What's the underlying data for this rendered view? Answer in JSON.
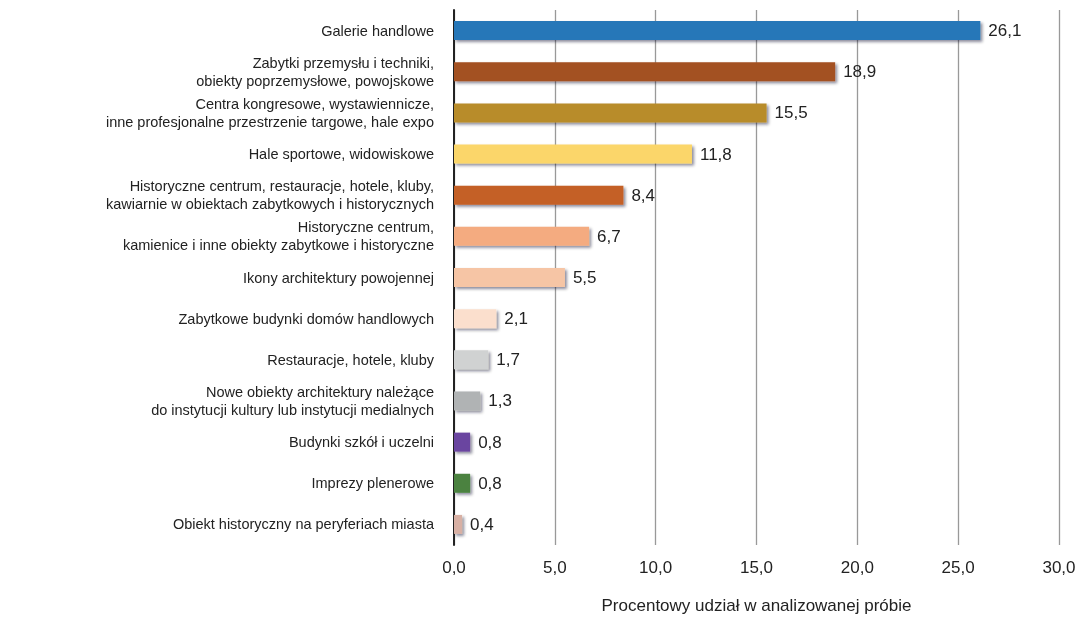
{
  "chart_data": {
    "type": "bar",
    "orientation": "horizontal",
    "xlabel": "Procentowy udział w analizowanej próbie",
    "categories": [
      "Galerie handlowe",
      "Zabytki przemysłu i techniki,\nobiekty poprzemysłowe, powojskowe",
      "Centra kongresowe, wystawiennicze,\ninne profesjonalne przestrzenie targowe, hale expo",
      "Hale sportowe, widowiskowe",
      "Historyczne centrum, restauracje, hotele, kluby,\nkawiarnie w obiektach zabytkowych i historycznych",
      "Historyczne centrum,\nkamienice i inne obiekty zabytkowe i historyczne",
      "Ikony architektury powojennej",
      "Zabytkowe budynki domów handlowych",
      "Restauracje, hotele, kluby",
      "Nowe obiekty architektury należące\ndo instytucji kultury lub instytucji medialnych",
      "Budynki szkół i uczelni",
      "Imprezy plenerowe",
      "Obiekt historyczny na peryferiach miasta"
    ],
    "values": [
      26.1,
      18.9,
      15.5,
      11.8,
      8.4,
      6.7,
      5.5,
      2.1,
      1.7,
      1.3,
      0.8,
      0.8,
      0.4
    ],
    "value_labels": [
      "26,1",
      "18,9",
      "15,5",
      "11,8",
      "8,4",
      "6,7",
      "5,5",
      "2,1",
      "1,7",
      "1,3",
      "0,8",
      "0,8",
      "0,4"
    ],
    "colors": [
      "#2577b8",
      "#a35122",
      "#b88c2a",
      "#fbd66a",
      "#c46025",
      "#f4ab80",
      "#f6c5a5",
      "#fbdfcd",
      "#d0d2d2",
      "#b0b3b4",
      "#6a45a0",
      "#4b8240",
      "#d8b0a4"
    ],
    "xlim": [
      0,
      30
    ],
    "xticks": [
      {
        "value": 0,
        "label": "0,0"
      },
      {
        "value": 5,
        "label": "5,0"
      },
      {
        "value": 10,
        "label": "10,0"
      },
      {
        "value": 15,
        "label": "15,0"
      },
      {
        "value": 20,
        "label": "20,0"
      },
      {
        "value": 25,
        "label": "25,0"
      },
      {
        "value": 30,
        "label": "30,0"
      }
    ],
    "grid": "x"
  }
}
